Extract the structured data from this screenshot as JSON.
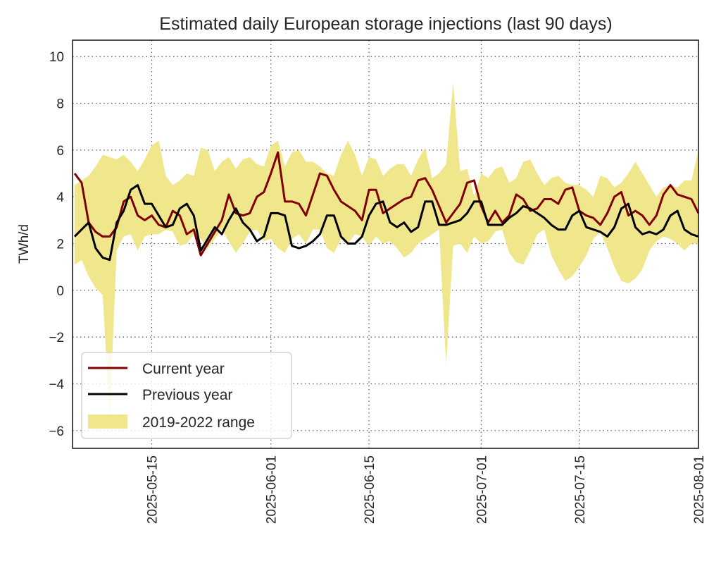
{
  "chart_data": {
    "type": "line",
    "title": "Estimated daily European storage injections (last 90 days)",
    "xlabel": "",
    "ylabel": "TWh/d",
    "x_start": "2025-05-04",
    "x_end": "2025-08-01",
    "xlim": [
      "2025-05-04",
      "2025-08-01"
    ],
    "ylim": [
      -6.76,
      10.7
    ],
    "x_ticks": [
      "2025-05-15",
      "2025-06-01",
      "2025-06-15",
      "2025-07-01",
      "2025-07-15",
      "2025-08-01"
    ],
    "y_ticks": [
      -6,
      -4,
      -2,
      0,
      2,
      4,
      6,
      8,
      10
    ],
    "y_tick_labels": [
      "−6",
      "−4",
      "−2",
      "0",
      "2",
      "4",
      "6",
      "8",
      "10"
    ],
    "grid": true,
    "legend_position": "lower-left",
    "series": [
      {
        "name": "Current year",
        "color": "#800000",
        "values": [
          5.0,
          4.6,
          2.9,
          2.5,
          2.3,
          2.3,
          2.7,
          3.8,
          4.0,
          3.2,
          3.0,
          3.2,
          2.8,
          2.7,
          3.4,
          3.2,
          2.4,
          2.6,
          1.5,
          2.0,
          2.5,
          3.0,
          4.1,
          3.3,
          3.2,
          3.3,
          4.0,
          4.2,
          5.0,
          5.9,
          3.8,
          3.8,
          3.7,
          3.2,
          4.1,
          5.0,
          4.9,
          4.3,
          3.8,
          3.6,
          3.4,
          3.0,
          4.3,
          4.3,
          3.3,
          3.5,
          3.7,
          3.9,
          4.0,
          4.7,
          4.8,
          4.3,
          3.6,
          2.9,
          3.3,
          3.7,
          4.6,
          4.7,
          3.6,
          2.9,
          3.4,
          2.9,
          3.2,
          4.1,
          3.9,
          3.4,
          3.5,
          3.9,
          3.9,
          3.7,
          4.3,
          4.4,
          3.4,
          3.2,
          3.1,
          2.8,
          3.3,
          4.0,
          4.2,
          3.2,
          3.4,
          3.2,
          2.8,
          3.2,
          4.1,
          4.5,
          4.1,
          4.0,
          3.9,
          3.3
        ]
      },
      {
        "name": "Previous year",
        "color": "#000000",
        "values": [
          2.3,
          2.6,
          2.9,
          1.8,
          1.4,
          1.3,
          2.9,
          3.4,
          4.3,
          4.5,
          3.7,
          3.7,
          3.2,
          2.7,
          2.8,
          3.5,
          3.7,
          3.2,
          1.7,
          2.2,
          2.7,
          2.4,
          3.0,
          3.5,
          2.9,
          2.6,
          2.1,
          2.3,
          3.3,
          3.3,
          3.2,
          1.9,
          1.8,
          1.9,
          2.1,
          2.4,
          3.2,
          3.2,
          2.3,
          2.0,
          2.0,
          2.3,
          3.2,
          3.7,
          3.8,
          2.9,
          2.7,
          2.9,
          2.5,
          2.7,
          3.8,
          3.8,
          2.8,
          2.8,
          2.9,
          3.0,
          3.3,
          3.8,
          3.8,
          2.8,
          2.8,
          2.8,
          3.1,
          3.3,
          3.6,
          3.5,
          3.3,
          3.1,
          2.8,
          2.6,
          2.6,
          3.2,
          3.4,
          2.7,
          2.6,
          2.5,
          2.3,
          2.7,
          3.5,
          3.7,
          2.7,
          2.4,
          2.5,
          2.4,
          2.6,
          3.2,
          3.4,
          2.6,
          2.4,
          2.3
        ]
      }
    ],
    "range": {
      "name": "2019-2022 range",
      "color": "#F0E68C",
      "upper": [
        4.5,
        4.7,
        4.9,
        5.3,
        5.8,
        5.7,
        5.6,
        5.8,
        5.5,
        5.1,
        5.6,
        6.2,
        6.4,
        4.9,
        4.5,
        4.7,
        5.0,
        4.9,
        6.1,
        6.0,
        5.1,
        5.5,
        5.7,
        5.2,
        5.6,
        5.7,
        5.4,
        5.3,
        6.2,
        6.4,
        5.3,
        5.9,
        6.0,
        5.5,
        5.5,
        5.3,
        5.0,
        4.9,
        5.8,
        6.4,
        5.8,
        4.9,
        5.7,
        5.6,
        4.9,
        5.2,
        5.4,
        5.4,
        4.9,
        5.6,
        6.1,
        4.8,
        5.0,
        5.4,
        8.9,
        5.1,
        5.2,
        4.0,
        5.0,
        4.8,
        5.2,
        5.3,
        4.6,
        4.8,
        5.5,
        5.6,
        5.0,
        4.5,
        4.8,
        4.9,
        4.6,
        4.5,
        4.5,
        4.3,
        4.0,
        4.9,
        4.8,
        4.4,
        4.6,
        5.0,
        5.5,
        5.0,
        4.5,
        4.0,
        4.4,
        4.5,
        4.4,
        4.7,
        4.7,
        6.0
      ],
      "lower": [
        1.1,
        1.3,
        0.6,
        0.1,
        -0.2,
        -5.4,
        1.7,
        2.3,
        2.4,
        1.7,
        2.3,
        2.4,
        2.4,
        2.6,
        2.5,
        1.9,
        2.0,
        2.4,
        2.2,
        1.8,
        2.2,
        2.6,
        2.1,
        1.6,
        2.0,
        2.5,
        2.6,
        2.1,
        2.2,
        1.8,
        1.6,
        2.2,
        2.4,
        2.0,
        2.6,
        2.6,
        1.8,
        1.6,
        2.2,
        2.0,
        2.4,
        2.3,
        1.9,
        2.3,
        2.0,
        2.1,
        1.8,
        1.4,
        1.6,
        2.0,
        2.2,
        2.4,
        2.6,
        -3.2,
        1.9,
        2.0,
        1.6,
        2.3,
        2.0,
        2.1,
        2.5,
        2.6,
        1.6,
        1.2,
        1.1,
        1.7,
        2.4,
        2.6,
        1.5,
        0.9,
        0.4,
        0.6,
        1.0,
        1.5,
        2.2,
        2.5,
        1.8,
        1.0,
        0.4,
        0.3,
        0.5,
        0.9,
        1.7,
        2.1,
        2.3,
        2.2,
        2.0,
        1.7,
        2.0,
        2.0
      ]
    }
  }
}
